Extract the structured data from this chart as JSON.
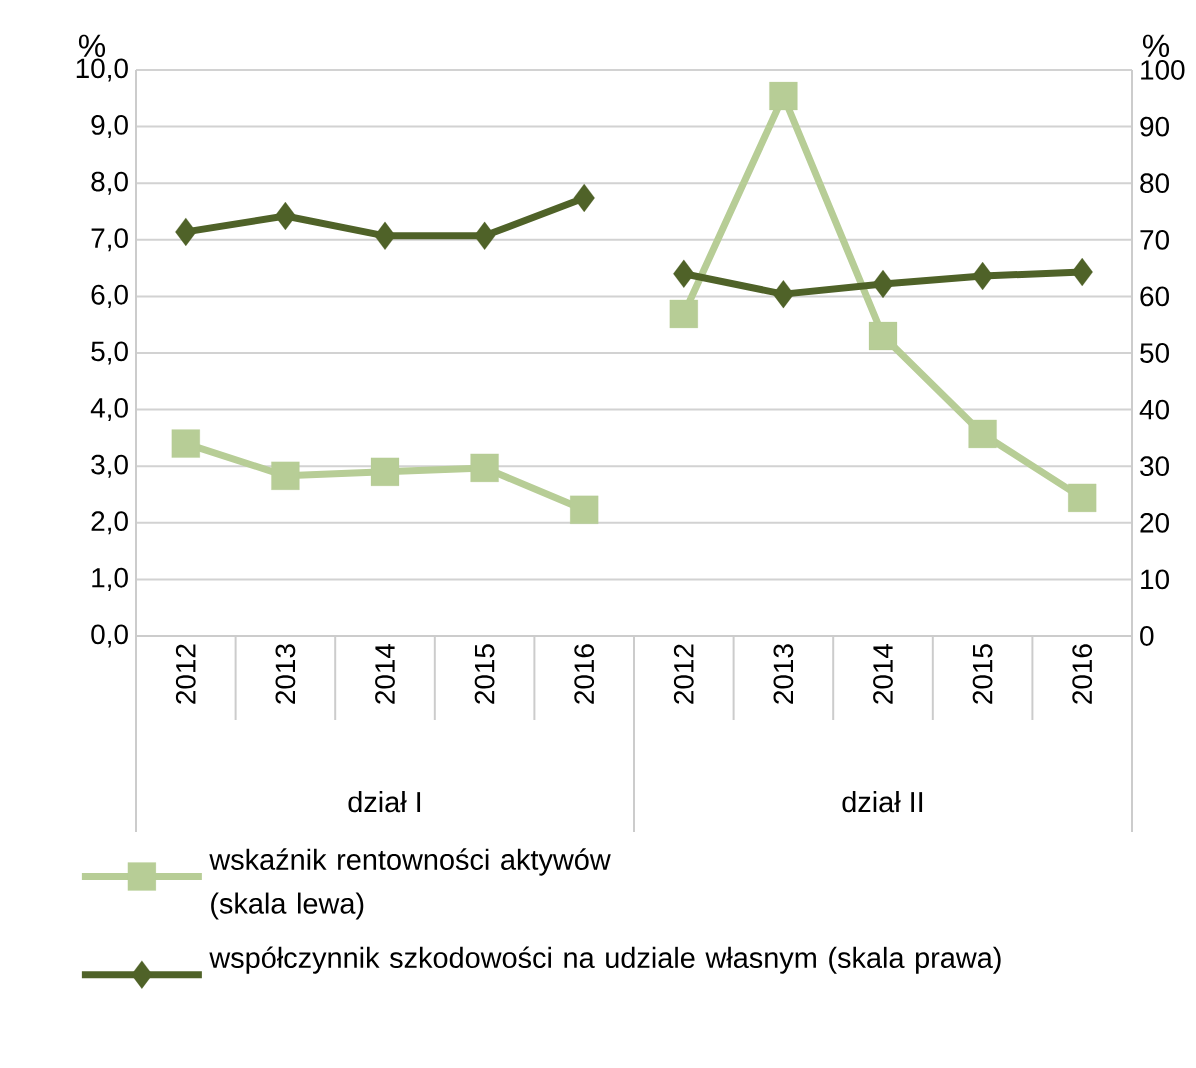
{
  "chart_data": {
    "type": "line",
    "categories": [
      "2012",
      "2013",
      "2014",
      "2015",
      "2016",
      "2012",
      "2013",
      "2014",
      "2015",
      "2016"
    ],
    "series": [
      {
        "name": "wskaźnik rentowności aktywów (skala lewa)",
        "color": "#b7cd96",
        "marker": "square",
        "values": [
          3.4,
          2.83,
          2.9,
          2.97,
          2.23,
          5.69,
          9.54,
          5.3,
          3.57,
          2.44
        ]
      },
      {
        "name": "współczynnik szkodowości na udziale własnym (skala prawa)",
        "color": "#4f6228",
        "marker": "diamond",
        "axis": "y2",
        "values": [
          71.4,
          74.2,
          70.7,
          70.7,
          77.4,
          64.0,
          60.4,
          62.2,
          63.6,
          64.3
        ]
      }
    ],
    "ylabel": "%",
    "y2label": "%",
    "ylim": [
      0,
      10
    ],
    "yticks": [
      {
        "value": 0,
        "label": "0,0"
      },
      {
        "value": 1,
        "label": "1,0"
      },
      {
        "value": 2,
        "label": "2,0"
      },
      {
        "value": 3,
        "label": "3,0"
      },
      {
        "value": 4,
        "label": "4,0"
      },
      {
        "value": 5,
        "label": "5,0"
      },
      {
        "value": 6,
        "label": "6,0"
      },
      {
        "value": 7,
        "label": "7,0"
      },
      {
        "value": 8,
        "label": "8,0"
      },
      {
        "value": 9,
        "label": "9,0"
      },
      {
        "value": 10,
        "label": "10,0"
      }
    ],
    "y2lim": [
      0,
      100
    ],
    "y2ticks": [
      0,
      10,
      20,
      30,
      40,
      50,
      60,
      70,
      80,
      90,
      100
    ],
    "grid": "y",
    "legend": "bottom",
    "annotations": [
      "dział I",
      "dział II"
    ]
  }
}
